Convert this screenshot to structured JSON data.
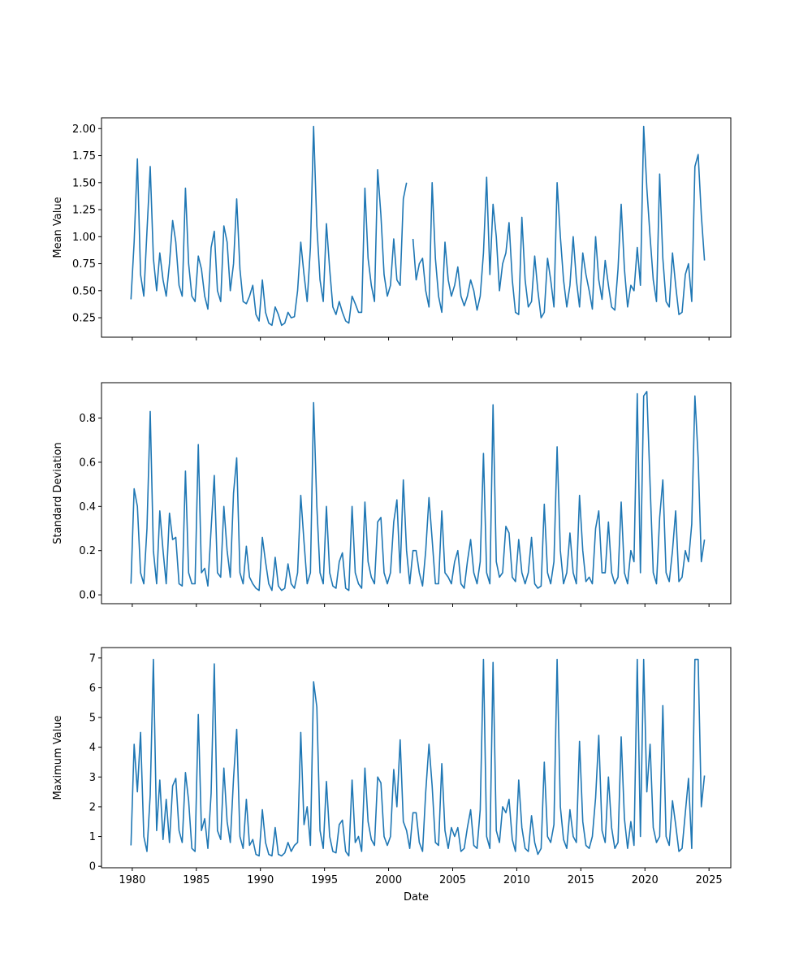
{
  "chart_data": {
    "type": "line",
    "xlabel": "Date",
    "x_start": 1979.9,
    "x_step": 0.25,
    "x_ticks": [
      "1980",
      "1985",
      "1990",
      "1995",
      "2000",
      "2005",
      "2010",
      "2015",
      "2020",
      "2025"
    ],
    "xlim": [
      1977.6,
      2026.7
    ],
    "line_color": "#1f77b4",
    "panels": [
      {
        "ylabel": "Mean Value",
        "ylim": [
          0.07,
          2.1
        ],
        "y_ticks": [
          "0.25",
          "0.50",
          "0.75",
          "1.00",
          "1.25",
          "1.50",
          "1.75",
          "2.00"
        ],
        "values": [
          0.42,
          0.95,
          1.72,
          0.65,
          0.45,
          1.05,
          1.65,
          0.8,
          0.5,
          0.85,
          0.6,
          0.45,
          0.75,
          1.15,
          0.95,
          0.55,
          0.45,
          1.45,
          0.75,
          0.45,
          0.4,
          0.82,
          0.7,
          0.45,
          0.33,
          0.9,
          1.05,
          0.5,
          0.4,
          1.1,
          0.95,
          0.5,
          0.75,
          1.35,
          0.7,
          0.4,
          0.38,
          0.45,
          0.55,
          0.28,
          0.22,
          0.6,
          0.3,
          0.2,
          0.18,
          0.35,
          0.28,
          0.18,
          0.2,
          0.3,
          0.25,
          0.26,
          0.5,
          0.95,
          0.65,
          0.4,
          0.9,
          2.02,
          1.1,
          0.6,
          0.4,
          1.12,
          0.7,
          0.35,
          0.28,
          0.4,
          0.3,
          0.22,
          0.2,
          0.45,
          0.38,
          0.3,
          0.3,
          1.45,
          0.8,
          0.55,
          0.4,
          1.62,
          1.2,
          0.65,
          0.45,
          0.55,
          0.98,
          0.6,
          0.55,
          1.35,
          1.5,
          null,
          0.98,
          0.6,
          0.75,
          0.8,
          0.5,
          0.35,
          1.5,
          0.8,
          0.45,
          0.3,
          0.95,
          0.6,
          0.45,
          0.55,
          0.72,
          0.45,
          0.36,
          0.45,
          0.6,
          0.5,
          0.32,
          0.45,
          0.85,
          1.55,
          0.65,
          1.3,
          1.0,
          0.5,
          0.75,
          0.85,
          1.13,
          0.6,
          0.3,
          0.28,
          1.18,
          0.6,
          0.35,
          0.4,
          0.82,
          0.5,
          0.25,
          0.3,
          0.8,
          0.6,
          0.35,
          1.5,
          1.0,
          0.6,
          0.35,
          0.55,
          1.0,
          0.6,
          0.35,
          0.85,
          0.65,
          0.5,
          0.33,
          1.0,
          0.6,
          0.42,
          0.78,
          0.55,
          0.35,
          0.32,
          0.7,
          1.3,
          0.7,
          0.35,
          0.55,
          0.5,
          0.9,
          0.55,
          2.02,
          1.45,
          1.0,
          0.6,
          0.4,
          1.58,
          0.8,
          0.4,
          0.35,
          0.85,
          0.55,
          0.28,
          0.3,
          0.65,
          0.75,
          0.4,
          1.65,
          1.76,
          1.2,
          0.78
        ]
      },
      {
        "ylabel": "Standard Deviation",
        "ylim": [
          -0.04,
          0.96
        ],
        "y_ticks": [
          "0.0",
          "0.2",
          "0.4",
          "0.6",
          "0.8"
        ],
        "values": [
          0.05,
          0.48,
          0.4,
          0.1,
          0.05,
          0.3,
          0.83,
          0.2,
          0.05,
          0.38,
          0.2,
          0.05,
          0.37,
          0.25,
          0.26,
          0.05,
          0.04,
          0.56,
          0.1,
          0.05,
          0.05,
          0.68,
          0.1,
          0.12,
          0.04,
          0.3,
          0.54,
          0.1,
          0.08,
          0.4,
          0.2,
          0.08,
          0.46,
          0.62,
          0.1,
          0.05,
          0.22,
          0.08,
          0.05,
          0.03,
          0.02,
          0.26,
          0.15,
          0.05,
          0.02,
          0.17,
          0.04,
          0.02,
          0.03,
          0.14,
          0.05,
          0.03,
          0.1,
          0.45,
          0.24,
          0.05,
          0.1,
          0.87,
          0.4,
          0.1,
          0.05,
          0.4,
          0.1,
          0.04,
          0.03,
          0.15,
          0.19,
          0.03,
          0.02,
          0.4,
          0.1,
          0.05,
          0.03,
          0.42,
          0.15,
          0.08,
          0.05,
          0.33,
          0.35,
          0.1,
          0.05,
          0.1,
          0.33,
          0.43,
          0.1,
          0.52,
          0.2,
          0.05,
          0.2,
          0.2,
          0.1,
          0.04,
          0.2,
          0.44,
          0.25,
          0.05,
          0.05,
          0.38,
          0.1,
          0.08,
          0.05,
          0.15,
          0.2,
          0.05,
          0.03,
          0.15,
          0.25,
          0.1,
          0.05,
          0.15,
          0.64,
          0.1,
          0.05,
          0.86,
          0.15,
          0.08,
          0.1,
          0.31,
          0.28,
          0.08,
          0.06,
          0.25,
          0.1,
          0.05,
          0.1,
          0.26,
          0.05,
          0.03,
          0.04,
          0.41,
          0.1,
          0.05,
          0.15,
          0.67,
          0.2,
          0.05,
          0.1,
          0.28,
          0.1,
          0.05,
          0.45,
          0.2,
          0.06,
          0.08,
          0.05,
          0.3,
          0.38,
          0.1,
          0.1,
          0.33,
          0.1,
          0.05,
          0.08,
          0.42,
          0.1,
          0.05,
          0.2,
          0.15,
          0.91,
          0.1,
          0.9,
          0.92,
          0.5,
          0.1,
          0.05,
          0.35,
          0.52,
          0.1,
          0.06,
          0.2,
          0.38,
          0.06,
          0.08,
          0.2,
          0.15,
          0.32,
          0.9,
          0.62,
          0.15,
          0.25
        ]
      },
      {
        "ylabel": "Maximum Value",
        "ylim": [
          -0.05,
          7.35
        ],
        "y_ticks": [
          "0",
          "1",
          "2",
          "3",
          "4",
          "5",
          "6",
          "7"
        ],
        "values": [
          0.7,
          4.1,
          2.5,
          4.5,
          1.0,
          0.5,
          2.4,
          6.95,
          1.2,
          2.9,
          0.9,
          2.25,
          0.8,
          2.7,
          2.95,
          1.2,
          0.8,
          3.15,
          2.2,
          0.6,
          0.5,
          5.1,
          1.2,
          1.6,
          0.6,
          2.45,
          6.8,
          1.2,
          0.9,
          3.3,
          1.5,
          0.8,
          2.95,
          4.6,
          1.0,
          0.6,
          2.25,
          0.7,
          0.9,
          0.4,
          0.35,
          1.9,
          0.8,
          0.4,
          0.35,
          1.3,
          0.4,
          0.35,
          0.45,
          0.8,
          0.5,
          0.7,
          0.8,
          4.5,
          1.4,
          2.0,
          0.7,
          6.2,
          5.35,
          1.2,
          0.6,
          2.85,
          1.0,
          0.5,
          0.45,
          1.4,
          1.55,
          0.5,
          0.35,
          2.9,
          0.8,
          1.0,
          0.5,
          3.3,
          1.5,
          0.9,
          0.7,
          3.0,
          2.8,
          1.0,
          0.7,
          1.0,
          3.25,
          2.0,
          4.25,
          1.5,
          1.2,
          0.6,
          1.8,
          1.8,
          0.8,
          0.5,
          2.5,
          4.1,
          2.7,
          0.8,
          0.7,
          3.45,
          1.2,
          0.6,
          1.3,
          1.0,
          1.3,
          0.5,
          0.6,
          1.3,
          1.9,
          0.7,
          0.6,
          1.9,
          6.95,
          1.0,
          0.6,
          6.85,
          1.2,
          0.8,
          2.0,
          1.8,
          2.25,
          0.9,
          0.5,
          2.9,
          1.3,
          0.6,
          0.5,
          1.7,
          0.8,
          0.4,
          0.6,
          3.5,
          1.0,
          0.8,
          1.4,
          6.95,
          2.0,
          0.9,
          0.6,
          1.9,
          1.0,
          0.8,
          4.2,
          1.5,
          0.7,
          0.6,
          1.0,
          2.3,
          4.4,
          1.2,
          0.8,
          3.0,
          1.3,
          0.6,
          0.8,
          4.35,
          1.6,
          0.6,
          1.5,
          0.7,
          6.95,
          1.0,
          6.95,
          2.5,
          4.1,
          1.3,
          0.8,
          1.0,
          5.4,
          1.0,
          0.7,
          2.2,
          1.4,
          0.5,
          0.6,
          1.8,
          2.95,
          0.6,
          6.95,
          6.95,
          2.0,
          3.05
        ]
      }
    ]
  }
}
